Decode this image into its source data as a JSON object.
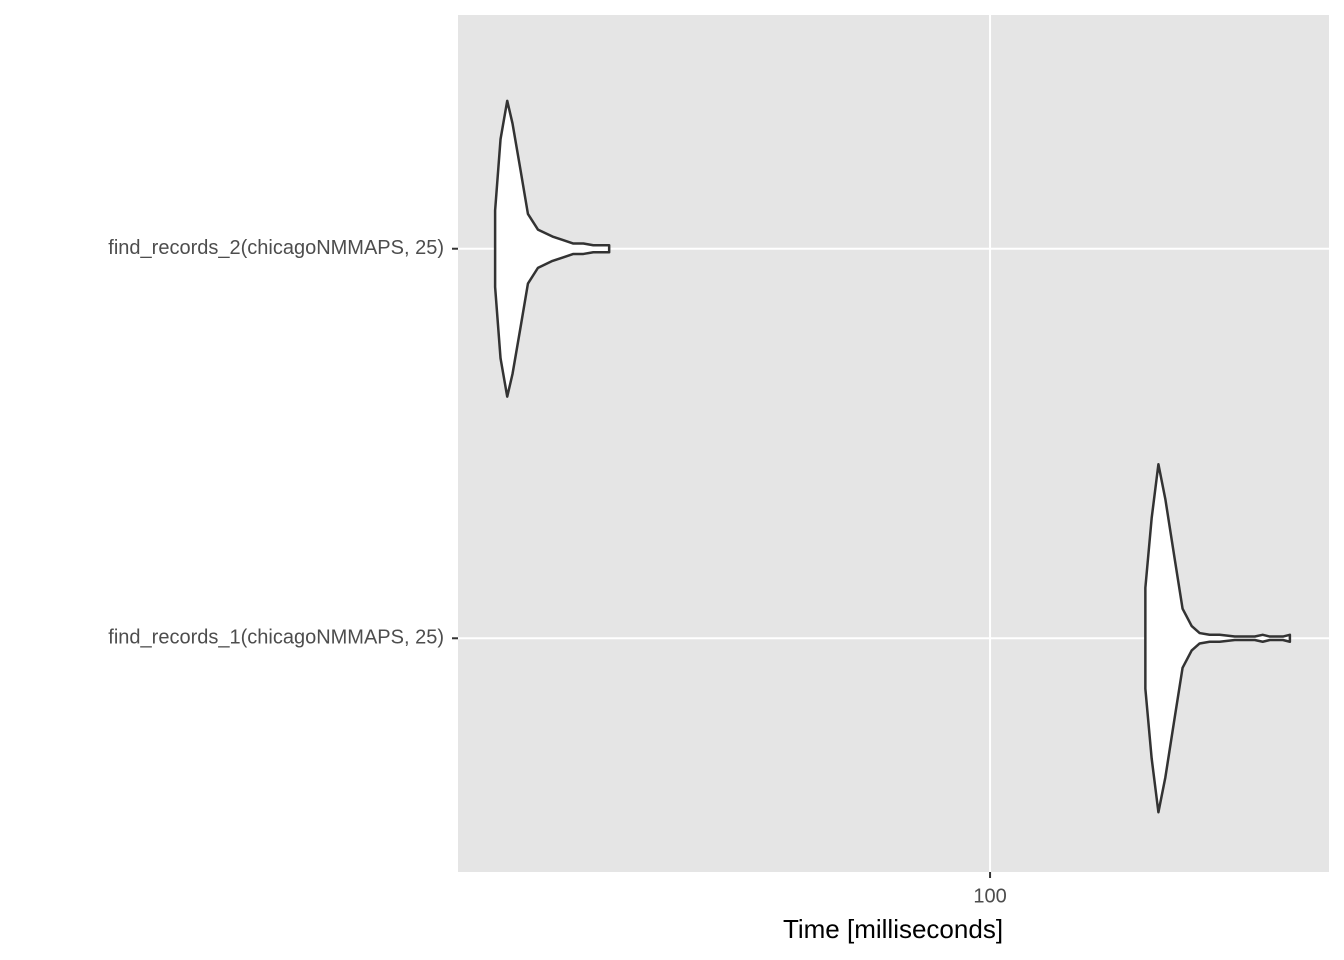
{
  "chart_data": {
    "type": "violin",
    "x_label": "Time [milliseconds]",
    "xscale": "log",
    "xlim": [
      28,
      225
    ],
    "xticks": [
      100
    ],
    "grid": true,
    "fill": "#ffffff",
    "line_color": "#333333",
    "categories": [
      "find_records_1(chicagoNMMAPS, 25)",
      "find_records_2(chicagoNMMAPS, 25)"
    ],
    "violins": [
      {
        "times": [
          145.0,
          147.2,
          149.6,
          152.1,
          155.5,
          158.5,
          162.0,
          165.1,
          169.1,
          173.2,
          179.6,
          188.4,
          192.0,
          195.3,
          201.5,
          204.9
        ],
        "density": [
          0.29,
          0.69,
          1,
          0.8,
          0.46,
          0.17,
          0.07,
          0.03,
          0.02,
          0.02,
          0.01,
          0.01,
          0.02,
          0.01,
          0.01,
          0.02
        ]
      },
      {
        "times": [
          30.6,
          31.0,
          31.5,
          31.9,
          32.5,
          33.1,
          33.9,
          35.1,
          36.0,
          36.9,
          37.8,
          38.7,
          40.2
        ],
        "density": [
          0.22,
          0.63,
          0.85,
          0.72,
          0.46,
          0.2,
          0.11,
          0.07,
          0.05,
          0.03,
          0.03,
          0.02,
          0.02
        ]
      }
    ]
  }
}
